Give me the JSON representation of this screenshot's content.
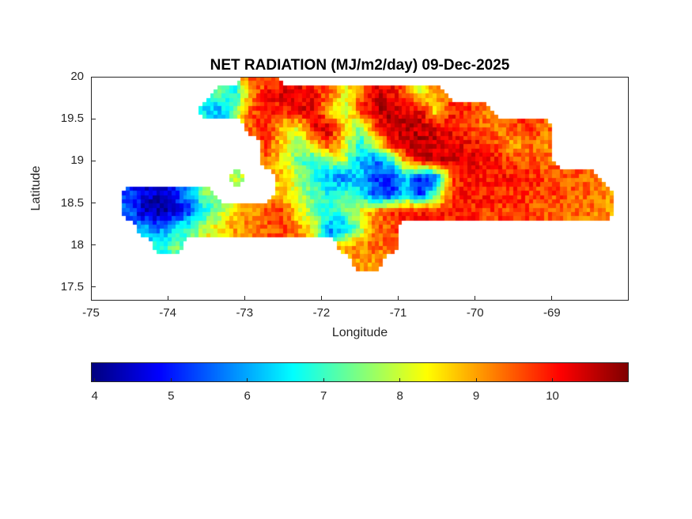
{
  "chart_data": {
    "type": "heatmap",
    "title": "NET RADIATION (MJ/m2/day) 09-Dec-2025",
    "xlabel": "Longitude",
    "ylabel": "Latitude",
    "xlim": [
      -75,
      -68
    ],
    "ylim": [
      17.34,
      20
    ],
    "x_tick_values": [
      -75,
      -74,
      -73,
      -72,
      -71,
      -70,
      -69
    ],
    "x_tick_labels": [
      "-75",
      "-74",
      "-73",
      "-72",
      "-71",
      "-70",
      "-69"
    ],
    "y_tick_values": [
      20,
      19.5,
      19,
      18.5,
      18,
      17.5
    ],
    "y_tick_labels": [
      "20",
      "19.5",
      "19",
      "18.5",
      "18",
      "17.5"
    ],
    "colormap": "jet",
    "color_limits": [
      3.95,
      11
    ],
    "grid_lines": false,
    "colorbar": {
      "orientation": "horizontal",
      "tick_values": [
        4,
        5,
        6,
        7,
        8,
        9,
        10
      ],
      "tick_labels": [
        "4",
        "5",
        "6",
        "7",
        "8",
        "9",
        "10"
      ]
    },
    "grid": {
      "units": "MJ/m2/day",
      "lon_origin": -74.5,
      "lon_step": 0.2,
      "lat_origin": 20.0,
      "lat_step": -0.2,
      "values": [
        [
          null,
          null,
          null,
          null,
          null,
          null,
          null,
          null,
          9.6,
          9.4,
          null,
          null,
          null,
          null,
          null,
          null,
          null,
          null,
          null,
          null,
          null,
          null,
          null,
          null,
          null,
          null,
          null,
          null,
          null,
          null,
          null,
          null
        ],
        [
          null,
          null,
          null,
          null,
          null,
          null,
          7.2,
          6.8,
          9.2,
          10.0,
          10.3,
          10.2,
          10.0,
          9.6,
          8.3,
          9.2,
          10.4,
          10.2,
          9.4,
          8.0,
          9.3,
          null,
          null,
          null,
          null,
          null,
          null,
          null,
          null,
          null,
          null,
          null
        ],
        [
          null,
          null,
          null,
          null,
          null,
          6.5,
          6.0,
          7.8,
          9.6,
          10.2,
          9.8,
          10.3,
          10.5,
          8.6,
          7.6,
          9.8,
          10.5,
          10.6,
          10.4,
          10.2,
          8.2,
          9.9,
          9.8,
          9.4,
          null,
          null,
          null,
          null,
          null,
          null,
          null,
          null
        ],
        [
          null,
          null,
          null,
          null,
          null,
          null,
          null,
          null,
          9.4,
          9.9,
          8.8,
          8.2,
          10.2,
          10.4,
          8.8,
          7.4,
          9.6,
          10.5,
          10.6,
          10.5,
          10.3,
          10.1,
          9.7,
          9.3,
          9.2,
          9.6,
          9.8,
          9.4,
          null,
          null,
          null,
          null
        ],
        [
          null,
          null,
          null,
          null,
          null,
          null,
          null,
          null,
          null,
          9.7,
          8.6,
          7.6,
          8.8,
          9.8,
          8.2,
          6.8,
          7.8,
          10.0,
          10.6,
          10.7,
          10.5,
          10.3,
          10.2,
          10.0,
          9.6,
          8.8,
          9.5,
          9.2,
          null,
          null,
          null,
          null
        ],
        [
          null,
          null,
          null,
          null,
          null,
          null,
          null,
          null,
          null,
          9.4,
          8.4,
          7.2,
          6.6,
          7.6,
          7.9,
          6.2,
          5.6,
          6.6,
          9.2,
          10.4,
          10.5,
          10.3,
          10.2,
          10.1,
          9.9,
          9.7,
          9.6,
          9.4,
          null,
          null,
          null,
          null
        ],
        [
          null,
          null,
          null,
          null,
          null,
          null,
          null,
          7.8,
          null,
          null,
          8.8,
          7.8,
          6.8,
          6.0,
          5.6,
          6.4,
          5.2,
          5.0,
          6.2,
          4.8,
          5.4,
          9.6,
          10.1,
          10.0,
          10.0,
          9.9,
          9.8,
          9.7,
          9.6,
          9.5,
          9.4,
          null
        ],
        [
          5.2,
          4.6,
          4.4,
          5.0,
          6.2,
          7.6,
          null,
          null,
          null,
          null,
          8.6,
          8.0,
          7.2,
          6.6,
          7.4,
          6.4,
          5.4,
          4.9,
          6.8,
          5.0,
          7.6,
          9.7,
          10.0,
          9.9,
          9.9,
          9.8,
          9.8,
          9.7,
          9.6,
          9.5,
          9.4,
          9.2
        ],
        [
          5.6,
          4.3,
          4.1,
          4.6,
          5.2,
          6.6,
          7.8,
          8.6,
          9.2,
          9.5,
          9.7,
          8.4,
          7.5,
          6.8,
          7.2,
          8.2,
          9.3,
          9.8,
          10.0,
          10.0,
          9.9,
          9.9,
          9.8,
          9.8,
          9.7,
          9.7,
          9.6,
          9.5,
          9.5,
          9.4,
          9.3,
          9.1
        ],
        [
          null,
          6.2,
          5.6,
          6.6,
          7.2,
          8.2,
          8.6,
          9.0,
          9.3,
          9.5,
          9.6,
          9.2,
          8.2,
          5.8,
          6.2,
          7.6,
          9.3,
          9.6,
          null,
          null,
          null,
          null,
          null,
          null,
          null,
          null,
          null,
          null,
          null,
          null,
          null,
          null
        ],
        [
          null,
          null,
          6.6,
          7.4,
          null,
          null,
          null,
          null,
          null,
          null,
          null,
          null,
          null,
          null,
          8.8,
          9.2,
          9.4,
          9.3,
          null,
          null,
          null,
          null,
          null,
          null,
          null,
          null,
          null,
          null,
          null,
          null,
          null,
          null
        ],
        [
          null,
          null,
          null,
          null,
          null,
          null,
          null,
          null,
          null,
          null,
          null,
          null,
          null,
          null,
          null,
          9.0,
          9.1,
          null,
          null,
          null,
          null,
          null,
          null,
          null,
          null,
          null,
          null,
          null,
          null,
          null,
          null,
          null
        ],
        [
          null,
          null,
          null,
          null,
          null,
          null,
          null,
          null,
          null,
          null,
          null,
          null,
          null,
          null,
          null,
          null,
          null,
          null,
          null,
          null,
          null,
          null,
          null,
          null,
          null,
          null,
          null,
          null,
          null,
          null,
          null,
          null
        ]
      ]
    }
  }
}
